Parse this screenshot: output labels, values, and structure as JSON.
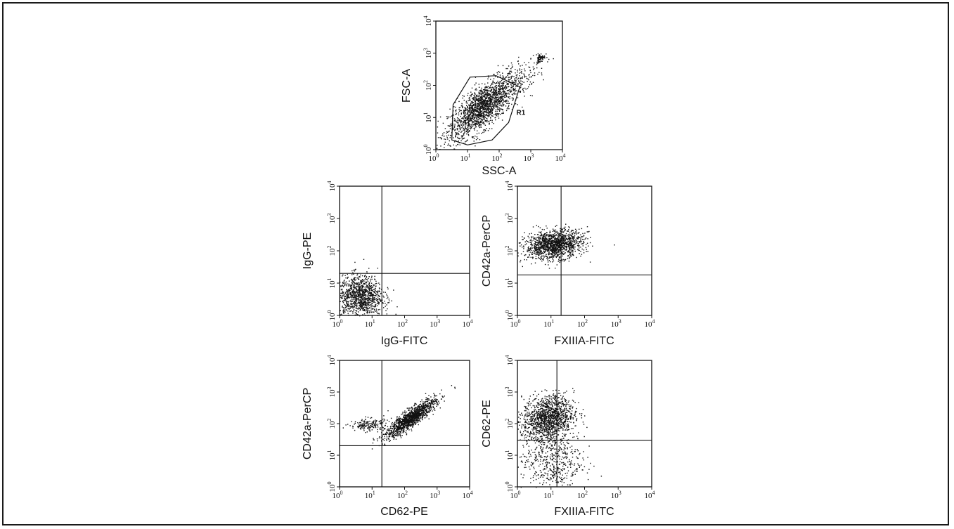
{
  "chart_data": [
    {
      "type": "scatter",
      "id": "panel_fsc_ssc",
      "xlabel": "SSC-A",
      "ylabel": "FSC-A",
      "scale": "log",
      "xlim": [
        1,
        10000
      ],
      "ylim": [
        1,
        10000
      ],
      "x_ticks": [
        "10",
        "10",
        "10",
        "10",
        "10"
      ],
      "x_tick_exps": [
        "0",
        "1",
        "2",
        "3",
        "4"
      ],
      "y_ticks": [
        "10",
        "10",
        "10",
        "10",
        "10"
      ],
      "y_tick_exps": [
        "0",
        "1",
        "2",
        "3",
        "4"
      ],
      "gate": {
        "name": "R1",
        "vertices": [
          [
            3.2,
            2.0
          ],
          [
            3.5,
            25
          ],
          [
            12,
            180
          ],
          [
            80,
            200
          ],
          [
            450,
            90
          ],
          [
            200,
            7
          ],
          [
            60,
            2
          ],
          [
            10,
            1.4
          ]
        ]
      },
      "clusters": [
        {
          "cx": 30,
          "cy": 22,
          "sx": 0.55,
          "sy": 0.5,
          "rho": 0.75,
          "n": 1800
        },
        {
          "cx": 2000,
          "cy": 750,
          "sx": 0.07,
          "sy": 0.07,
          "rho": 0.3,
          "n": 70
        },
        {
          "cx": 600,
          "cy": 200,
          "sx": 0.35,
          "sy": 0.35,
          "rho": 0.6,
          "n": 90
        }
      ]
    },
    {
      "type": "scatter",
      "id": "panel_igg",
      "xlabel": "IgG-FITC",
      "ylabel": "IgG-PE",
      "scale": "log",
      "xlim": [
        1,
        10000
      ],
      "ylim": [
        1,
        10000
      ],
      "x_ticks": [
        "10",
        "10",
        "10",
        "10",
        "10"
      ],
      "x_tick_exps": [
        "0",
        "1",
        "2",
        "3",
        "4"
      ],
      "y_ticks": [
        "10",
        "10",
        "10",
        "10",
        "10"
      ],
      "y_tick_exps": [
        "0",
        "1",
        "2",
        "3",
        "4"
      ],
      "quadrant": {
        "x": 20,
        "y": 20
      },
      "clusters": [
        {
          "cx": 4,
          "cy": 4,
          "sx": 0.35,
          "sy": 0.32,
          "rho": 0.0,
          "n": 1100
        }
      ]
    },
    {
      "type": "scatter",
      "id": "panel_cd42a_fxiiia",
      "xlabel": "FXIIIA-FITC",
      "ylabel": "CD42a-PerCP",
      "scale": "log",
      "xlim": [
        1,
        10000
      ],
      "ylim": [
        1,
        10000
      ],
      "x_ticks": [
        "10",
        "10",
        "10",
        "10",
        "10"
      ],
      "x_tick_exps": [
        "0",
        "1",
        "2",
        "3",
        "4"
      ],
      "y_ticks": [
        "10",
        "10",
        "10",
        "10",
        "10"
      ],
      "y_tick_exps": [
        "0",
        "1",
        "2",
        "3",
        "4"
      ],
      "quadrant": {
        "x": 20,
        "y": 18
      },
      "clusters": [
        {
          "cx": 12,
          "cy": 160,
          "sx": 0.42,
          "sy": 0.22,
          "rho": 0.2,
          "n": 1400
        }
      ]
    },
    {
      "type": "scatter",
      "id": "panel_cd42a_cd62",
      "xlabel": "CD62-PE",
      "ylabel": "CD42a-PerCP",
      "scale": "log",
      "xlim": [
        1,
        10000
      ],
      "ylim": [
        1,
        10000
      ],
      "x_ticks": [
        "10",
        "10",
        "10",
        "10",
        "10"
      ],
      "x_tick_exps": [
        "0",
        "1",
        "2",
        "3",
        "4"
      ],
      "y_ticks": [
        "10",
        "10",
        "10",
        "10",
        "10"
      ],
      "y_tick_exps": [
        "0",
        "1",
        "2",
        "3",
        "4"
      ],
      "quadrant": {
        "x": 20,
        "y": 20
      },
      "clusters": [
        {
          "cx": 150,
          "cy": 150,
          "sx": 0.38,
          "sy": 0.3,
          "rho": 0.88,
          "n": 1300
        },
        {
          "cx": 8,
          "cy": 95,
          "sx": 0.3,
          "sy": 0.1,
          "rho": 0.1,
          "n": 180
        }
      ]
    },
    {
      "type": "scatter",
      "id": "panel_cd62_fxiiia",
      "xlabel": "FXIIIA-FITC",
      "ylabel": "CD62-PE",
      "scale": "log",
      "xlim": [
        1,
        10000
      ],
      "ylim": [
        1,
        10000
      ],
      "x_ticks": [
        "10",
        "10",
        "10",
        "10",
        "10"
      ],
      "x_tick_exps": [
        "0",
        "1",
        "2",
        "3",
        "4"
      ],
      "y_ticks": [
        "10",
        "10",
        "10",
        "10",
        "10"
      ],
      "y_tick_exps": [
        "0",
        "1",
        "2",
        "3",
        "4"
      ],
      "quadrant": {
        "x": 15,
        "y": 30
      },
      "clusters": [
        {
          "cx": 8,
          "cy": 160,
          "sx": 0.38,
          "sy": 0.35,
          "rho": 0.15,
          "n": 1300
        },
        {
          "cx": 10,
          "cy": 8,
          "sx": 0.45,
          "sy": 0.55,
          "rho": 0.0,
          "n": 550
        }
      ]
    }
  ]
}
